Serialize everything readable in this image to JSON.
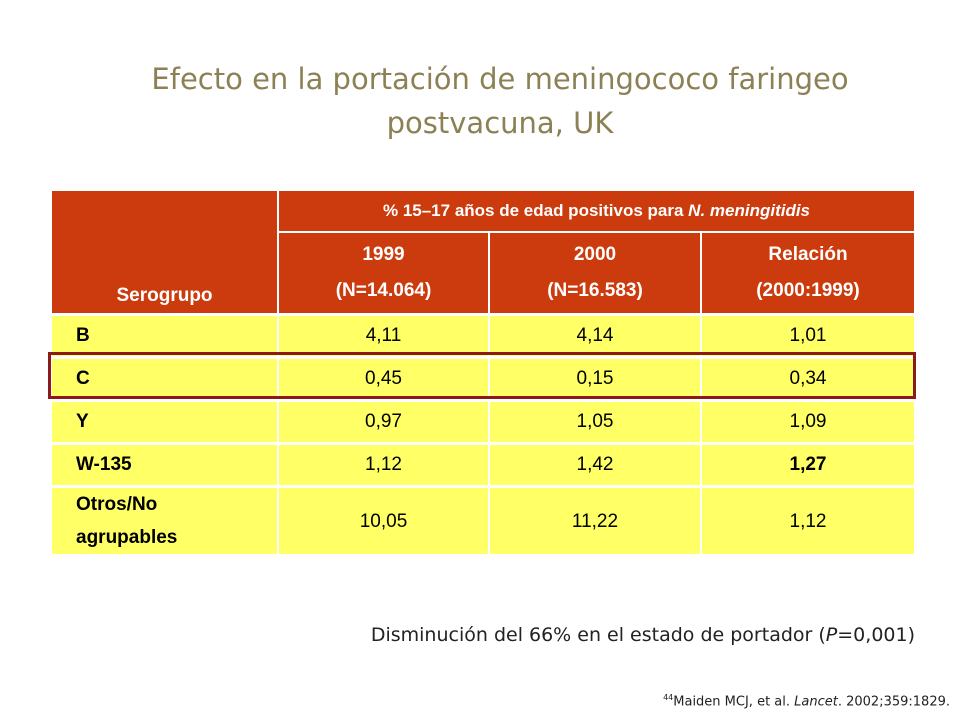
{
  "title": {
    "line1": "Efecto en la portación de meningococo faringeo",
    "line2": "postvacuna, UK"
  },
  "table": {
    "header": {
      "serogroup": "Serogrupo",
      "span_prefix": "% 15–17 años de edad positivos para ",
      "span_italic": "N. meningitidis",
      "col1_line1": "1999",
      "col1_line2": "(N=14.064)",
      "col2_line1": "2000",
      "col2_line2": "(N=16.583)",
      "col3_line1": "Relación",
      "col3_line2": "(2000:1999)"
    },
    "rows": [
      {
        "serogroup": "B",
        "y1999": "4,11",
        "y2000": "4,14",
        "ratio": "1,01"
      },
      {
        "serogroup": "C",
        "y1999": "0,45",
        "y2000": "0,15",
        "ratio": "0,34"
      },
      {
        "serogroup": "Y",
        "y1999": "0,97",
        "y2000": "1,05",
        "ratio": "1,09"
      },
      {
        "serogroup": "W-135",
        "y1999": "1,12",
        "y2000": "1,42",
        "ratio": "1,27"
      },
      {
        "serogroup_line1": "Otros/No",
        "serogroup_line2": "agrupables",
        "y1999": "10,05",
        "y2000": "11,22",
        "ratio": "1,12"
      }
    ]
  },
  "conclusion": {
    "prefix": "Disminución del 66% en el estado de portador (",
    "p_italic": "P",
    "suffix": "=0,001)"
  },
  "reference": {
    "number": "44",
    "authors": "Maiden MCJ, et al. ",
    "journal": "Lancet",
    "details": ". 2002;359:1829."
  },
  "colors": {
    "header_bg": "#cc3b0e",
    "row_bg": "#ffff66",
    "title": "#8c8154",
    "highlight_border": "#8b1a1a"
  }
}
